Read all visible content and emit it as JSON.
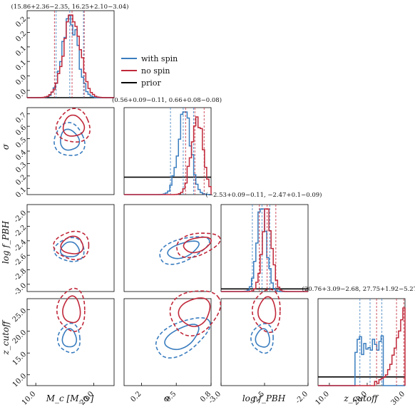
{
  "colors": {
    "with_spin": "#3a7dbf",
    "no_spin": "#c0283a",
    "prior": "#000000"
  },
  "legend": {
    "position": "top-right",
    "items": [
      {
        "label": "with spin",
        "color": "#3a7dbf"
      },
      {
        "label": "no spin",
        "color": "#c0283a"
      },
      {
        "label": "prior",
        "color": "#000000"
      }
    ]
  },
  "chart_data": {
    "type": "corner",
    "parameters": [
      {
        "key": "Mc",
        "label": "M_c [M_⊙]",
        "range": [
          8.5,
          23.5
        ],
        "ticks": [
          "10.0",
          "20.0"
        ]
      },
      {
        "key": "sigma",
        "label": "σ",
        "range": [
          0.05,
          0.8
        ],
        "ticks": [
          "0.2",
          "0.5",
          "0.8"
        ]
      },
      {
        "key": "logf",
        "label": "log f_PBH",
        "range": [
          -3.0,
          -2.0
        ],
        "ticks": [
          "-3.0",
          "-2.5",
          "-2.0"
        ]
      },
      {
        "key": "zcut",
        "label": "z_cutoff",
        "range": [
          7,
          30
        ],
        "ticks": [
          "10.0",
          "20.0",
          "30.0"
        ]
      }
    ],
    "yticks": {
      "Mc": [
        "0.0",
        "0.0",
        "0.1",
        "0.1",
        "0.2",
        "0.2"
      ],
      "sigma": [
        "0.1",
        "0.2",
        "0.3",
        "0.4",
        "0.5",
        "0.6",
        "0.7"
      ],
      "logf": [
        "-3.0",
        "-2.8",
        "-2.6",
        "-2.4",
        "-2.2",
        "-2.0"
      ],
      "zcut": [
        "10.0",
        "15.0",
        "20.0",
        "25.0"
      ]
    },
    "marginal_titles": [
      "(15.86+2.36−2.35, 16.25+2.10−3.04)",
      "(0.56+0.09−0.11, 0.66+0.08−0.08)",
      "(−2.53+0.09−0.11, −2.47+0.1−0.09)",
      "(20.76+3.09−2.68, 27.75+1.92−5.27)"
    ],
    "marginals": {
      "Mc": {
        "with_spin": {
          "median": 15.86,
          "lo": 13.51,
          "hi": 18.22,
          "mu": 15.9,
          "sd": 1.3
        },
        "no_spin": {
          "median": 16.25,
          "lo": 13.21,
          "hi": 18.35,
          "mu": 16.2,
          "sd": 1.45
        },
        "prior": 0.0
      },
      "sigma": {
        "with_spin": {
          "median": 0.56,
          "lo": 0.45,
          "hi": 0.65,
          "mu": 0.57,
          "sd": 0.055
        },
        "no_spin": {
          "median": 0.66,
          "lo": 0.58,
          "hi": 0.74,
          "mu": 0.68,
          "sd": 0.05
        },
        "prior": 0.2
      },
      "logf": {
        "with_spin": {
          "median": -2.53,
          "lo": -2.64,
          "hi": -2.44,
          "mu": -2.53,
          "sd": 0.055
        },
        "no_spin": {
          "median": -2.47,
          "lo": -2.56,
          "hi": -2.37,
          "mu": -2.47,
          "sd": 0.055
        },
        "prior": 0.03
      },
      "zcut": {
        "with_spin": {
          "median": 20.76,
          "lo": 18.08,
          "hi": 23.85
        },
        "no_spin": {
          "median": 27.75,
          "lo": 22.48,
          "hi": 29.67
        },
        "prior": 0.1
      }
    },
    "contours": {
      "sigma_Mc": {
        "with_spin": {
          "cx": 15.8,
          "cy": 0.52,
          "rx": 1.6,
          "ry": 0.09,
          "rot": -20
        },
        "no_spin": {
          "cx": 16.5,
          "cy": 0.64,
          "rx": 1.8,
          "ry": 0.09,
          "rot": -25
        }
      },
      "logf_Mc": {
        "with_spin": {
          "cx": 15.9,
          "cy": -2.52,
          "rx": 1.6,
          "ry": 0.085,
          "rot": 0
        },
        "no_spin": {
          "cx": 16.3,
          "cy": -2.47,
          "rx": 1.9,
          "ry": 0.1,
          "rot": 0
        }
      },
      "logf_sigma": {
        "with_spin": {
          "cx": 0.56,
          "cy": -2.52,
          "rx": 0.14,
          "ry": 0.08,
          "rot": -20
        },
        "no_spin": {
          "cx": 0.68,
          "cy": -2.46,
          "rx": 0.12,
          "ry": 0.08,
          "rot": -15
        }
      },
      "zcut_Mc": {
        "with_spin": {
          "cx": 15.8,
          "cy": 19.5,
          "rx": 1.2,
          "ry": 2.4,
          "rot": 0
        },
        "no_spin": {
          "cx": 16.2,
          "cy": 27.0,
          "rx": 1.5,
          "ry": 3.5,
          "rot": 0
        }
      },
      "zcut_sigma": {
        "with_spin": {
          "cx": 0.55,
          "cy": 19.8,
          "rx": 0.16,
          "ry": 2.5,
          "rot": -30
        },
        "no_spin": {
          "cx": 0.66,
          "cy": 26.5,
          "rx": 0.14,
          "ry": 3.5,
          "rot": -30
        }
      },
      "zcut_logf": {
        "with_spin": {
          "cx": -2.52,
          "cy": 19.5,
          "rx": 0.08,
          "ry": 2.4,
          "rot": 0
        },
        "no_spin": {
          "cx": -2.47,
          "cy": 26.8,
          "rx": 0.1,
          "ry": 3.5,
          "rot": 0
        }
      }
    }
  }
}
